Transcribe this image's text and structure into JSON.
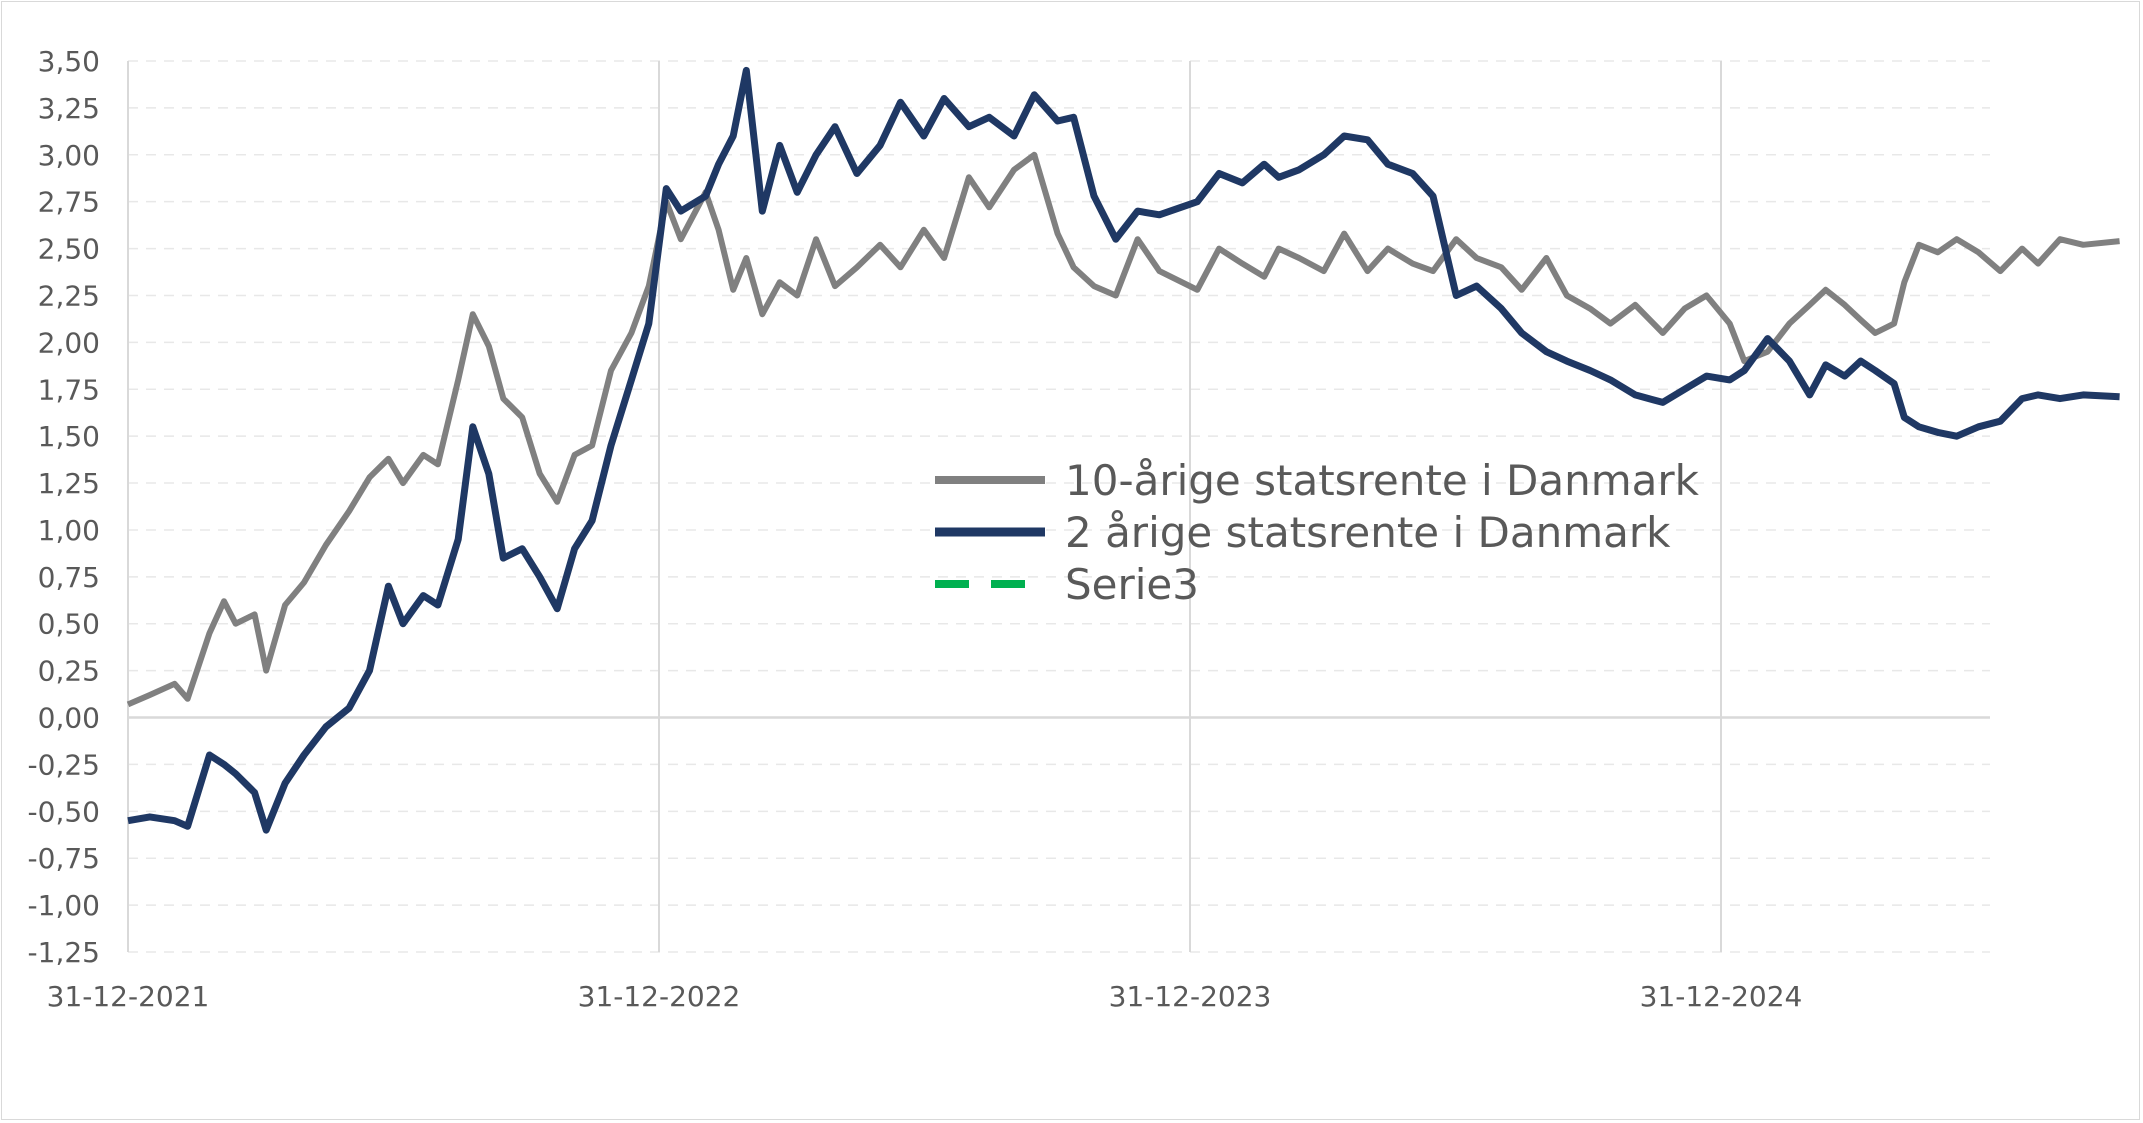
{
  "chart_data": {
    "type": "line",
    "title": "",
    "xlabel": "",
    "ylabel": "",
    "x_ticks": [
      "31-12-2021",
      "31-12-2022",
      "31-12-2023",
      "31-12-2024"
    ],
    "x_range": [
      "2021-12-31",
      "2025-09-30"
    ],
    "y_ticks": [
      "3,50",
      "3,25",
      "3,00",
      "2,75",
      "2,50",
      "2,25",
      "2,00",
      "1,75",
      "1,50",
      "1,25",
      "1,00",
      "0,75",
      "0,50",
      "0,25",
      "0,00",
      "-0,25",
      "-0,50",
      "-0,75",
      "-1,00",
      "-1,25"
    ],
    "ylim": [
      -1.25,
      3.5
    ],
    "grid": "horizontal dashed, vertical solid at year ticks",
    "legend_position": "center-right",
    "series": [
      {
        "name": "10-årige statsrente i Danmark",
        "color": "#808080",
        "style": "solid",
        "points": [
          [
            "2021-12-31",
            0.07
          ],
          [
            "2022-01-15",
            0.12
          ],
          [
            "2022-02-01",
            0.18
          ],
          [
            "2022-02-10",
            0.1
          ],
          [
            "2022-02-25",
            0.45
          ],
          [
            "2022-03-07",
            0.62
          ],
          [
            "2022-03-15",
            0.5
          ],
          [
            "2022-03-28",
            0.55
          ],
          [
            "2022-04-05",
            0.25
          ],
          [
            "2022-04-18",
            0.6
          ],
          [
            "2022-05-01",
            0.72
          ],
          [
            "2022-05-16",
            0.92
          ],
          [
            "2022-06-01",
            1.1
          ],
          [
            "2022-06-15",
            1.28
          ],
          [
            "2022-06-28",
            1.38
          ],
          [
            "2022-07-08",
            1.25
          ],
          [
            "2022-07-22",
            1.4
          ],
          [
            "2022-08-01",
            1.35
          ],
          [
            "2022-08-15",
            1.8
          ],
          [
            "2022-08-25",
            2.15
          ],
          [
            "2022-09-05",
            1.98
          ],
          [
            "2022-09-15",
            1.7
          ],
          [
            "2022-09-28",
            1.6
          ],
          [
            "2022-10-10",
            1.3
          ],
          [
            "2022-10-22",
            1.15
          ],
          [
            "2022-11-03",
            1.4
          ],
          [
            "2022-11-15",
            1.45
          ],
          [
            "2022-11-28",
            1.85
          ],
          [
            "2022-12-12",
            2.05
          ],
          [
            "2022-12-24",
            2.3
          ],
          [
            "2023-01-05",
            2.75
          ],
          [
            "2023-01-15",
            2.55
          ],
          [
            "2023-02-01",
            2.8
          ],
          [
            "2023-02-10",
            2.6
          ],
          [
            "2023-02-20",
            2.28
          ],
          [
            "2023-03-01",
            2.45
          ],
          [
            "2023-03-12",
            2.15
          ],
          [
            "2023-03-24",
            2.32
          ],
          [
            "2023-04-05",
            2.25
          ],
          [
            "2023-04-18",
            2.55
          ],
          [
            "2023-05-01",
            2.3
          ],
          [
            "2023-05-16",
            2.4
          ],
          [
            "2023-06-01",
            2.52
          ],
          [
            "2023-06-15",
            2.4
          ],
          [
            "2023-07-01",
            2.6
          ],
          [
            "2023-07-15",
            2.45
          ],
          [
            "2023-08-01",
            2.88
          ],
          [
            "2023-08-15",
            2.72
          ],
          [
            "2023-09-01",
            2.92
          ],
          [
            "2023-09-15",
            3.0
          ],
          [
            "2023-10-01",
            2.58
          ],
          [
            "2023-10-12",
            2.4
          ],
          [
            "2023-10-26",
            2.3
          ],
          [
            "2023-11-10",
            2.25
          ],
          [
            "2023-11-25",
            2.55
          ],
          [
            "2023-12-10",
            2.38
          ],
          [
            "2024-01-05",
            2.28
          ],
          [
            "2024-01-20",
            2.5
          ],
          [
            "2024-02-05",
            2.42
          ],
          [
            "2024-02-20",
            2.35
          ],
          [
            "2024-03-01",
            2.5
          ],
          [
            "2024-03-15",
            2.45
          ],
          [
            "2024-04-01",
            2.38
          ],
          [
            "2024-04-15",
            2.58
          ],
          [
            "2024-05-01",
            2.38
          ],
          [
            "2024-05-15",
            2.5
          ],
          [
            "2024-06-01",
            2.42
          ],
          [
            "2024-06-15",
            2.38
          ],
          [
            "2024-07-01",
            2.55
          ],
          [
            "2024-07-15",
            2.45
          ],
          [
            "2024-08-01",
            2.4
          ],
          [
            "2024-08-15",
            2.28
          ],
          [
            "2024-09-01",
            2.45
          ],
          [
            "2024-09-15",
            2.25
          ],
          [
            "2024-10-01",
            2.18
          ],
          [
            "2024-10-15",
            2.1
          ],
          [
            "2024-11-01",
            2.2
          ],
          [
            "2024-11-20",
            2.05
          ],
          [
            "2024-12-05",
            2.18
          ],
          [
            "2024-12-20",
            2.25
          ],
          [
            "2025-01-05",
            2.1
          ],
          [
            "2025-01-15",
            1.9
          ],
          [
            "2025-01-31",
            1.95
          ],
          [
            "2025-02-15",
            2.1
          ],
          [
            "2025-03-01",
            2.2
          ],
          [
            "2025-03-12",
            2.28
          ],
          [
            "2025-03-25",
            2.2
          ],
          [
            "2025-04-05",
            2.12
          ],
          [
            "2025-04-15",
            2.05
          ],
          [
            "2025-04-28",
            2.1
          ],
          [
            "2025-05-05",
            2.32
          ],
          [
            "2025-05-15",
            2.52
          ],
          [
            "2025-05-28",
            2.48
          ],
          [
            "2025-06-10",
            2.55
          ],
          [
            "2025-06-25",
            2.48
          ],
          [
            "2025-07-10",
            2.38
          ],
          [
            "2025-07-25",
            2.5
          ],
          [
            "2025-08-05",
            2.42
          ],
          [
            "2025-08-20",
            2.55
          ],
          [
            "2025-09-05",
            2.52
          ],
          [
            "2025-09-30",
            2.54
          ]
        ]
      },
      {
        "name": "2 årige statsrente i Danmark",
        "color": "#1f3864",
        "style": "solid",
        "points": [
          [
            "2021-12-31",
            -0.55
          ],
          [
            "2022-01-15",
            -0.53
          ],
          [
            "2022-02-01",
            -0.55
          ],
          [
            "2022-02-10",
            -0.58
          ],
          [
            "2022-02-25",
            -0.2
          ],
          [
            "2022-03-07",
            -0.25
          ],
          [
            "2022-03-15",
            -0.3
          ],
          [
            "2022-03-28",
            -0.4
          ],
          [
            "2022-04-05",
            -0.6
          ],
          [
            "2022-04-18",
            -0.35
          ],
          [
            "2022-05-01",
            -0.2
          ],
          [
            "2022-05-16",
            -0.05
          ],
          [
            "2022-06-01",
            0.05
          ],
          [
            "2022-06-15",
            0.25
          ],
          [
            "2022-06-28",
            0.7
          ],
          [
            "2022-07-08",
            0.5
          ],
          [
            "2022-07-22",
            0.65
          ],
          [
            "2022-08-01",
            0.6
          ],
          [
            "2022-08-15",
            0.95
          ],
          [
            "2022-08-25",
            1.55
          ],
          [
            "2022-09-05",
            1.3
          ],
          [
            "2022-09-15",
            0.85
          ],
          [
            "2022-09-28",
            0.9
          ],
          [
            "2022-10-10",
            0.75
          ],
          [
            "2022-10-22",
            0.58
          ],
          [
            "2022-11-03",
            0.9
          ],
          [
            "2022-11-15",
            1.05
          ],
          [
            "2022-11-28",
            1.45
          ],
          [
            "2022-12-12",
            1.8
          ],
          [
            "2022-12-24",
            2.1
          ],
          [
            "2023-01-05",
            2.82
          ],
          [
            "2023-01-15",
            2.7
          ],
          [
            "2023-02-01",
            2.78
          ],
          [
            "2023-02-10",
            2.95
          ],
          [
            "2023-02-20",
            3.1
          ],
          [
            "2023-03-01",
            3.45
          ],
          [
            "2023-03-12",
            2.7
          ],
          [
            "2023-03-24",
            3.05
          ],
          [
            "2023-04-05",
            2.8
          ],
          [
            "2023-04-18",
            3.0
          ],
          [
            "2023-05-01",
            3.15
          ],
          [
            "2023-05-16",
            2.9
          ],
          [
            "2023-06-01",
            3.05
          ],
          [
            "2023-06-15",
            3.28
          ],
          [
            "2023-07-01",
            3.1
          ],
          [
            "2023-07-15",
            3.3
          ],
          [
            "2023-08-01",
            3.15
          ],
          [
            "2023-08-15",
            3.2
          ],
          [
            "2023-09-01",
            3.1
          ],
          [
            "2023-09-15",
            3.32
          ],
          [
            "2023-10-01",
            3.18
          ],
          [
            "2023-10-12",
            3.2
          ],
          [
            "2023-10-26",
            2.78
          ],
          [
            "2023-11-10",
            2.55
          ],
          [
            "2023-11-25",
            2.7
          ],
          [
            "2023-12-10",
            2.68
          ],
          [
            "2024-01-05",
            2.75
          ],
          [
            "2024-01-20",
            2.9
          ],
          [
            "2024-02-05",
            2.85
          ],
          [
            "2024-02-20",
            2.95
          ],
          [
            "2024-03-01",
            2.88
          ],
          [
            "2024-03-15",
            2.92
          ],
          [
            "2024-04-01",
            3.0
          ],
          [
            "2024-04-15",
            3.1
          ],
          [
            "2024-05-01",
            3.08
          ],
          [
            "2024-05-15",
            2.95
          ],
          [
            "2024-06-01",
            2.9
          ],
          [
            "2024-06-15",
            2.78
          ],
          [
            "2024-07-01",
            2.25
          ],
          [
            "2024-07-15",
            2.3
          ],
          [
            "2024-08-01",
            2.18
          ],
          [
            "2024-08-15",
            2.05
          ],
          [
            "2024-09-01",
            1.95
          ],
          [
            "2024-09-15",
            1.9
          ],
          [
            "2024-10-01",
            1.85
          ],
          [
            "2024-10-15",
            1.8
          ],
          [
            "2024-11-01",
            1.72
          ],
          [
            "2024-11-20",
            1.68
          ],
          [
            "2024-12-05",
            1.75
          ],
          [
            "2024-12-20",
            1.82
          ],
          [
            "2025-01-05",
            1.8
          ],
          [
            "2025-01-15",
            1.85
          ],
          [
            "2025-01-31",
            2.02
          ],
          [
            "2025-02-15",
            1.9
          ],
          [
            "2025-03-01",
            1.72
          ],
          [
            "2025-03-12",
            1.88
          ],
          [
            "2025-03-25",
            1.82
          ],
          [
            "2025-04-05",
            1.9
          ],
          [
            "2025-04-15",
            1.85
          ],
          [
            "2025-04-28",
            1.78
          ],
          [
            "2025-05-05",
            1.6
          ],
          [
            "2025-05-15",
            1.55
          ],
          [
            "2025-05-28",
            1.52
          ],
          [
            "2025-06-10",
            1.5
          ],
          [
            "2025-06-25",
            1.55
          ],
          [
            "2025-07-10",
            1.58
          ],
          [
            "2025-07-25",
            1.7
          ],
          [
            "2025-08-05",
            1.72
          ],
          [
            "2025-08-20",
            1.7
          ],
          [
            "2025-09-05",
            1.72
          ],
          [
            "2025-09-30",
            1.71
          ]
        ]
      },
      {
        "name": "Serie3",
        "color": "#00b050",
        "style": "dashed",
        "points": []
      }
    ]
  }
}
